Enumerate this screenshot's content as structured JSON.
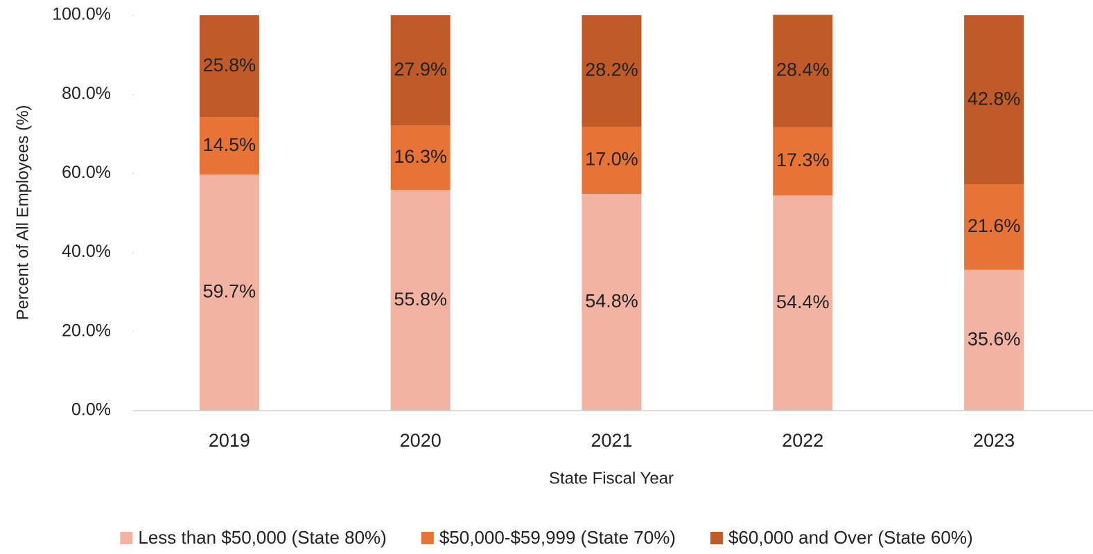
{
  "chart_data": {
    "type": "stacked-bar",
    "y_label": "Percent of All Employees (%)",
    "x_label": "State Fiscal Year",
    "categories": [
      "2019",
      "2020",
      "2021",
      "2022",
      "2023"
    ],
    "series": [
      {
        "name": "Less than $50,000 (State 80%)",
        "color": "#f2b3a3",
        "values": [
          59.7,
          55.8,
          54.8,
          54.4,
          35.6
        ],
        "value_labels": [
          "59.7%",
          "55.8%",
          "54.8%",
          "54.4%",
          "35.6%"
        ]
      },
      {
        "name": "$50,000-$59,999 (State 70%)",
        "color": "#e77334",
        "values": [
          14.5,
          16.3,
          17.0,
          17.3,
          21.6
        ],
        "value_labels": [
          "14.5%",
          "16.3%",
          "17.0%",
          "17.3%",
          "21.6%"
        ]
      },
      {
        "name": "$60,000 and Over (State 60%)",
        "color": "#c05b28",
        "values": [
          25.8,
          27.9,
          28.2,
          28.4,
          42.8
        ],
        "value_labels": [
          "25.8%",
          "27.9%",
          "28.2%",
          "28.4%",
          "42.8%"
        ]
      }
    ],
    "ylim": [
      0,
      100
    ],
    "yticks": [
      {
        "value": 0,
        "label": "0.0%"
      },
      {
        "value": 20,
        "label": "20.0%"
      },
      {
        "value": 40,
        "label": "40.0%"
      },
      {
        "value": 60,
        "label": "60.0%"
      },
      {
        "value": 80,
        "label": "80.0%"
      },
      {
        "value": 100,
        "label": "100.0%"
      }
    ],
    "legend": "bottom"
  }
}
